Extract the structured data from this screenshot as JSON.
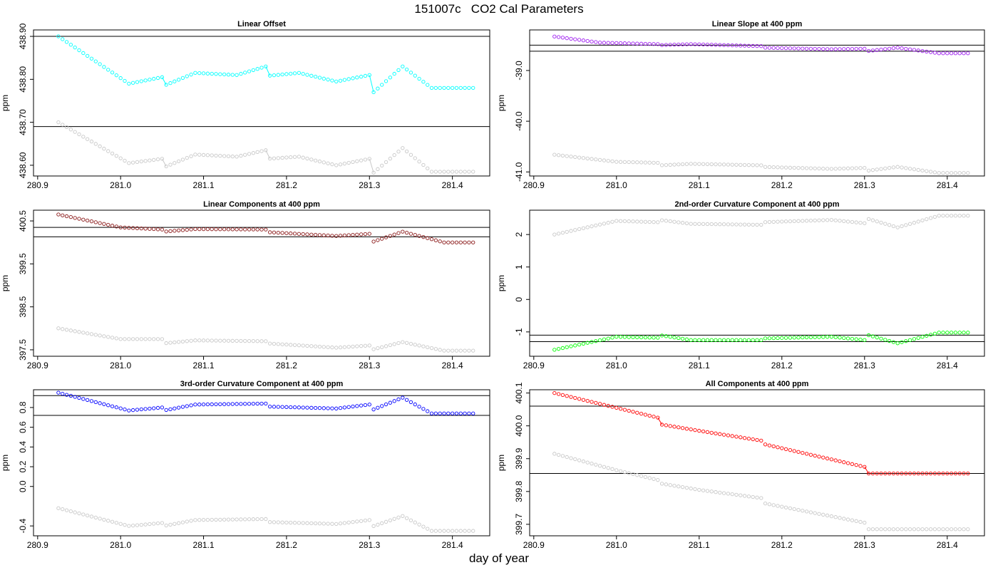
{
  "figure": {
    "title": "151007c   CO2 Cal Parameters",
    "xlabel": "day of year"
  },
  "chart_data": [
    {
      "type": "scatter",
      "title": "Linear Offset",
      "ylabel": "ppm",
      "xlim": [
        280.895,
        281.445
      ],
      "ylim": [
        438.575,
        438.915
      ],
      "xticks": [
        280.9,
        281.0,
        281.1,
        281.2,
        281.3,
        281.4
      ],
      "xtick_labels": [
        "280.9",
        "281.0",
        "281.1",
        "281.2",
        "281.3",
        "281.4"
      ],
      "yticks": [
        438.6,
        438.7,
        438.8,
        438.9
      ],
      "ytick_labels": [
        "438.60",
        "438.70",
        "438.80",
        "438.90"
      ],
      "hlines": [
        438.9,
        438.69
      ],
      "x_start": 280.925,
      "x_step": 0.005,
      "x_end": 281.425,
      "series": [
        {
          "color": "#00ffff",
          "line_segments": true,
          "knots": [
            [
              280.925,
              438.9
            ],
            [
              281.01,
              438.79
            ],
            [
              281.05,
              438.805
            ],
            [
              281.052,
              438.785
            ],
            [
              281.09,
              438.815
            ],
            [
              281.14,
              438.81
            ],
            [
              281.175,
              438.83
            ],
            [
              281.177,
              438.808
            ],
            [
              281.215,
              438.815
            ],
            [
              281.26,
              438.795
            ],
            [
              281.3,
              438.81
            ],
            [
              281.302,
              438.765
            ],
            [
              281.34,
              438.83
            ],
            [
              281.375,
              438.78
            ],
            [
              281.425,
              438.78
            ]
          ]
        },
        {
          "color": "#c8c8c8",
          "line_segments": true,
          "knots": [
            [
              280.925,
              438.7
            ],
            [
              281.01,
              438.605
            ],
            [
              281.05,
              438.615
            ],
            [
              281.052,
              438.595
            ],
            [
              281.09,
              438.625
            ],
            [
              281.14,
              438.62
            ],
            [
              281.175,
              438.635
            ],
            [
              281.177,
              438.615
            ],
            [
              281.215,
              438.62
            ],
            [
              281.26,
              438.6
            ],
            [
              281.3,
              438.615
            ],
            [
              281.302,
              438.578
            ],
            [
              281.34,
              438.64
            ],
            [
              281.375,
              438.585
            ],
            [
              281.425,
              438.585
            ]
          ]
        }
      ]
    },
    {
      "type": "scatter",
      "title": "Linear Slope at 400 ppm",
      "ylabel": "ppm",
      "xlim": [
        280.895,
        281.445
      ],
      "ylim": [
        -41.08,
        -38.2
      ],
      "xticks": [
        280.9,
        281.0,
        281.1,
        281.2,
        281.3,
        281.4
      ],
      "xtick_labels": [
        "280.9",
        "281.0",
        "281.1",
        "281.2",
        "281.3",
        "281.4"
      ],
      "yticks": [
        -41.0,
        -40.0,
        -39.0
      ],
      "ytick_labels": [
        "-41.0",
        "-40.0",
        "-39.0"
      ],
      "hlines": [
        -38.5,
        -38.62
      ],
      "x_start": 280.925,
      "x_step": 0.005,
      "x_end": 281.425,
      "series": [
        {
          "color": "#a020f0",
          "line_segments": false,
          "knots": [
            [
              280.925,
              -38.33
            ],
            [
              280.98,
              -38.45
            ],
            [
              281.05,
              -38.48
            ],
            [
              281.052,
              -38.5
            ],
            [
              281.09,
              -38.48
            ],
            [
              281.175,
              -38.52
            ],
            [
              281.177,
              -38.55
            ],
            [
              281.26,
              -38.58
            ],
            [
              281.3,
              -38.57
            ],
            [
              281.302,
              -38.62
            ],
            [
              281.34,
              -38.55
            ],
            [
              281.39,
              -38.66
            ],
            [
              281.425,
              -38.66
            ]
          ]
        },
        {
          "color": "#c8c8c8",
          "line_segments": false,
          "knots": [
            [
              280.925,
              -40.66
            ],
            [
              281.0,
              -40.8
            ],
            [
              281.05,
              -40.82
            ],
            [
              281.052,
              -40.87
            ],
            [
              281.09,
              -40.84
            ],
            [
              281.175,
              -40.87
            ],
            [
              281.177,
              -40.9
            ],
            [
              281.26,
              -40.94
            ],
            [
              281.3,
              -40.92
            ],
            [
              281.302,
              -40.98
            ],
            [
              281.34,
              -40.9
            ],
            [
              281.39,
              -41.02
            ],
            [
              281.425,
              -41.02
            ]
          ]
        }
      ]
    },
    {
      "type": "scatter",
      "title": "Linear Components at 400 ppm",
      "ylabel": "ppm",
      "xlim": [
        280.895,
        281.445
      ],
      "ylim": [
        397.35,
        400.75
      ],
      "xticks": [
        280.9,
        281.0,
        281.1,
        281.2,
        281.3,
        281.4
      ],
      "xtick_labels": [
        "280.9",
        "281.0",
        "281.1",
        "281.2",
        "281.3",
        "281.4"
      ],
      "yticks": [
        397.5,
        398.5,
        399.5,
        400.5
      ],
      "ytick_labels": [
        "397.5",
        "398.5",
        "399.5",
        "400.5"
      ],
      "hlines": [
        400.35,
        400.13
      ],
      "x_start": 280.925,
      "x_step": 0.005,
      "x_end": 281.425,
      "series": [
        {
          "color": "#8b1a1a",
          "line_segments": false,
          "knots": [
            [
              280.925,
              400.65
            ],
            [
              281.0,
              400.35
            ],
            [
              281.05,
              400.3
            ],
            [
              281.052,
              400.25
            ],
            [
              281.09,
              400.31
            ],
            [
              281.175,
              400.3
            ],
            [
              281.177,
              400.24
            ],
            [
              281.26,
              400.15
            ],
            [
              281.3,
              400.2
            ],
            [
              281.302,
              400.0
            ],
            [
              281.34,
              400.25
            ],
            [
              281.39,
              400.0
            ],
            [
              281.425,
              400.0
            ]
          ]
        },
        {
          "color": "#c8c8c8",
          "line_segments": false,
          "knots": [
            [
              280.925,
              398.0
            ],
            [
              281.0,
              397.75
            ],
            [
              281.05,
              397.75
            ],
            [
              281.052,
              397.65
            ],
            [
              281.09,
              397.72
            ],
            [
              281.175,
              397.7
            ],
            [
              281.177,
              397.65
            ],
            [
              281.26,
              397.55
            ],
            [
              281.3,
              397.6
            ],
            [
              281.302,
              397.5
            ],
            [
              281.34,
              397.68
            ],
            [
              281.39,
              397.48
            ],
            [
              281.425,
              397.48
            ]
          ]
        }
      ]
    },
    {
      "type": "scatter",
      "title": "2nd-order Curvature Component at 400 ppm",
      "ylabel": "ppm",
      "xlim": [
        280.895,
        281.445
      ],
      "ylim": [
        -1.75,
        2.75
      ],
      "xticks": [
        280.9,
        281.0,
        281.1,
        281.2,
        281.3,
        281.4
      ],
      "xtick_labels": [
        "280.9",
        "281.0",
        "281.1",
        "281.2",
        "281.3",
        "281.4"
      ],
      "yticks": [
        -1,
        0,
        1,
        2
      ],
      "ytick_labels": [
        "-1",
        "0",
        "1",
        "2"
      ],
      "hlines": [
        -1.1,
        -1.3
      ],
      "x_start": 280.925,
      "x_step": 0.005,
      "x_end": 281.425,
      "series": [
        {
          "color": "#00ff00",
          "line_segments": false,
          "knots": [
            [
              280.925,
              -1.55
            ],
            [
              281.0,
              -1.15
            ],
            [
              281.05,
              -1.18
            ],
            [
              281.052,
              -1.1
            ],
            [
              281.09,
              -1.25
            ],
            [
              281.175,
              -1.25
            ],
            [
              281.177,
              -1.2
            ],
            [
              281.26,
              -1.15
            ],
            [
              281.3,
              -1.25
            ],
            [
              281.302,
              -1.08
            ],
            [
              281.34,
              -1.35
            ],
            [
              281.39,
              -1.02
            ],
            [
              281.425,
              -1.02
            ]
          ]
        },
        {
          "color": "#c8c8c8",
          "line_segments": false,
          "knots": [
            [
              280.925,
              2.0
            ],
            [
              281.0,
              2.42
            ],
            [
              281.05,
              2.38
            ],
            [
              281.052,
              2.45
            ],
            [
              281.09,
              2.33
            ],
            [
              281.175,
              2.3
            ],
            [
              281.177,
              2.38
            ],
            [
              281.26,
              2.45
            ],
            [
              281.3,
              2.35
            ],
            [
              281.302,
              2.5
            ],
            [
              281.34,
              2.22
            ],
            [
              281.39,
              2.58
            ],
            [
              281.425,
              2.58
            ]
          ]
        }
      ]
    },
    {
      "type": "scatter",
      "title": "3rd-order Curvature Component at 400 ppm",
      "ylabel": "ppm",
      "xlim": [
        280.895,
        281.445
      ],
      "ylim": [
        -0.5,
        0.98
      ],
      "xticks": [
        280.9,
        281.0,
        281.1,
        281.2,
        281.3,
        281.4
      ],
      "xtick_labels": [
        "280.9",
        "281.0",
        "281.1",
        "281.2",
        "281.3",
        "281.4"
      ],
      "yticks": [
        -0.4,
        0.0,
        0.2,
        0.4,
        0.6,
        0.8
      ],
      "ytick_labels": [
        "-0.4",
        "0.0",
        "0.2",
        "0.4",
        "0.6",
        "0.8"
      ],
      "hlines": [
        0.92,
        0.72
      ],
      "x_start": 280.925,
      "x_step": 0.005,
      "x_end": 281.425,
      "series": [
        {
          "color": "#0000ff",
          "line_segments": false,
          "knots": [
            [
              280.925,
              0.95
            ],
            [
              281.01,
              0.77
            ],
            [
              281.05,
              0.8
            ],
            [
              281.052,
              0.77
            ],
            [
              281.09,
              0.83
            ],
            [
              281.175,
              0.84
            ],
            [
              281.177,
              0.81
            ],
            [
              281.26,
              0.79
            ],
            [
              281.3,
              0.83
            ],
            [
              281.302,
              0.77
            ],
            [
              281.34,
              0.9
            ],
            [
              281.375,
              0.74
            ],
            [
              281.425,
              0.74
            ]
          ]
        },
        {
          "color": "#c8c8c8",
          "line_segments": false,
          "knots": [
            [
              280.925,
              -0.22
            ],
            [
              281.01,
              -0.4
            ],
            [
              281.05,
              -0.37
            ],
            [
              281.052,
              -0.4
            ],
            [
              281.09,
              -0.34
            ],
            [
              281.175,
              -0.33
            ],
            [
              281.177,
              -0.36
            ],
            [
              281.26,
              -0.38
            ],
            [
              281.3,
              -0.34
            ],
            [
              281.302,
              -0.41
            ],
            [
              281.34,
              -0.3
            ],
            [
              281.375,
              -0.45
            ],
            [
              281.425,
              -0.45
            ]
          ]
        }
      ]
    },
    {
      "type": "scatter",
      "title": "All Components at 400 ppm",
      "ylabel": "ppm",
      "xlim": [
        280.895,
        281.445
      ],
      "ylim": [
        399.665,
        400.11
      ],
      "xticks": [
        280.9,
        281.0,
        281.1,
        281.2,
        281.3,
        281.4
      ],
      "xtick_labels": [
        "280.9",
        "281.0",
        "281.1",
        "281.2",
        "281.3",
        "281.4"
      ],
      "yticks": [
        399.7,
        399.8,
        399.9,
        400.0,
        400.1
      ],
      "ytick_labels": [
        "399.7",
        "399.8",
        "399.9",
        "400.0",
        "400.1"
      ],
      "hlines": [
        400.06,
        399.855
      ],
      "x_start": 280.925,
      "x_step": 0.005,
      "x_end": 281.425,
      "series": [
        {
          "color": "#ff0000",
          "line_segments": true,
          "knots": [
            [
              280.925,
              400.1
            ],
            [
              281.0,
              400.055
            ],
            [
              281.05,
              400.025
            ],
            [
              281.052,
              400.005
            ],
            [
              281.1,
              399.985
            ],
            [
              281.175,
              399.955
            ],
            [
              281.177,
              399.945
            ],
            [
              281.3,
              399.875
            ],
            [
              281.302,
              399.855
            ],
            [
              281.425,
              399.855
            ]
          ]
        },
        {
          "color": "#c8c8c8",
          "line_segments": false,
          "knots": [
            [
              280.925,
              399.915
            ],
            [
              281.0,
              399.865
            ],
            [
              281.05,
              399.835
            ],
            [
              281.052,
              399.825
            ],
            [
              281.1,
              399.805
            ],
            [
              281.175,
              399.78
            ],
            [
              281.177,
              399.765
            ],
            [
              281.3,
              399.705
            ],
            [
              281.302,
              399.685
            ],
            [
              281.425,
              399.685
            ]
          ]
        }
      ]
    }
  ]
}
